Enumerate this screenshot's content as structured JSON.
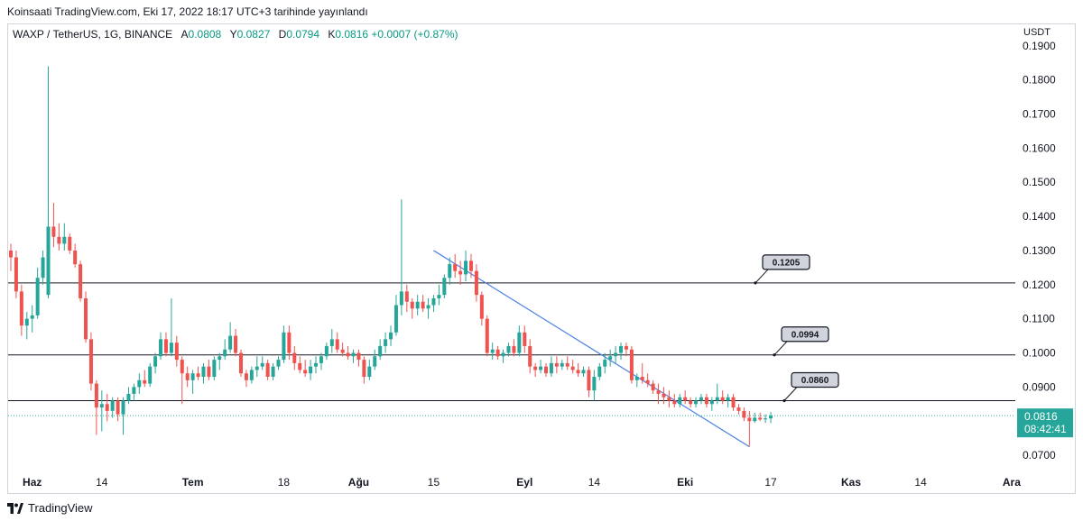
{
  "header": {
    "published_line": "Koinsaati TradingView.com, Eki 17, 2022 18:17 UTC+3 tarihinde yayınlandı"
  },
  "symbol_bar": {
    "symbol": "WAXP / TetherUS, 1G, BINANCE",
    "open_label": "A",
    "open_value": "0.0808",
    "high_label": "Y",
    "high_value": "0.0827",
    "low_label": "D",
    "low_value": "0.0794",
    "close_label": "K",
    "close_value": "0.0816",
    "change": "+0.0007 (+0.87%)"
  },
  "price_axis": {
    "unit": "USDT",
    "ticks": [
      "0.1900",
      "0.1800",
      "0.1700",
      "0.1600",
      "0.1500",
      "0.1400",
      "0.1300",
      "0.1200",
      "0.1100",
      "0.1000",
      "0.0900",
      "0.0700"
    ]
  },
  "time_axis": {
    "ticks": [
      "Haz",
      "14",
      "Tem",
      "18",
      "Ağu",
      "15",
      "Eyl",
      "14",
      "Eki",
      "17",
      "Kas",
      "14",
      "Ara"
    ]
  },
  "last_price": {
    "value": "0.0816",
    "countdown": "08:42:41"
  },
  "footer": {
    "brand": "TradingView"
  },
  "colors": {
    "up": "#26a69a",
    "down": "#ef5350",
    "trendline": "#4a7ee6",
    "level_line": "#131722",
    "last_price_tag": "#26a69a"
  },
  "chart_data": {
    "type": "candlestick",
    "symbol": "WAXP / TetherUS",
    "interval": "1G",
    "ylim": [
      0.065,
      0.1955
    ],
    "date_range": [
      "2022-05-28",
      "2022-10-17"
    ],
    "horizontal_levels": [
      {
        "value": 0.1205,
        "label": "0.1205"
      },
      {
        "value": 0.0994,
        "label": "0.0994"
      },
      {
        "value": 0.086,
        "label": "0.0860"
      }
    ],
    "trendline": {
      "from": {
        "date": "2022-08-15",
        "price": 0.13
      },
      "to": {
        "date": "2022-10-13",
        "price": 0.0725
      }
    },
    "last_price": 0.0816,
    "candles": [
      {
        "d": "2022-05-28",
        "o": 0.13,
        "h": 0.132,
        "l": 0.124,
        "c": 0.128
      },
      {
        "d": "2022-05-29",
        "o": 0.128,
        "h": 0.13,
        "l": 0.116,
        "c": 0.118
      },
      {
        "d": "2022-05-30",
        "o": 0.118,
        "h": 0.12,
        "l": 0.105,
        "c": 0.108
      },
      {
        "d": "2022-05-31",
        "o": 0.108,
        "h": 0.112,
        "l": 0.104,
        "c": 0.11
      },
      {
        "d": "2022-06-01",
        "o": 0.11,
        "h": 0.114,
        "l": 0.106,
        "c": 0.111
      },
      {
        "d": "2022-06-02",
        "o": 0.111,
        "h": 0.125,
        "l": 0.11,
        "c": 0.122
      },
      {
        "d": "2022-06-03",
        "o": 0.122,
        "h": 0.13,
        "l": 0.12,
        "c": 0.128
      },
      {
        "d": "2022-06-04",
        "o": 0.117,
        "h": 0.184,
        "l": 0.116,
        "c": 0.137
      },
      {
        "d": "2022-06-05",
        "o": 0.137,
        "h": 0.144,
        "l": 0.131,
        "c": 0.134
      },
      {
        "d": "2022-06-06",
        "o": 0.134,
        "h": 0.138,
        "l": 0.13,
        "c": 0.132
      },
      {
        "d": "2022-06-07",
        "o": 0.132,
        "h": 0.138,
        "l": 0.13,
        "c": 0.134
      },
      {
        "d": "2022-06-08",
        "o": 0.134,
        "h": 0.135,
        "l": 0.129,
        "c": 0.13
      },
      {
        "d": "2022-06-09",
        "o": 0.13,
        "h": 0.132,
        "l": 0.125,
        "c": 0.126
      },
      {
        "d": "2022-06-10",
        "o": 0.126,
        "h": 0.127,
        "l": 0.115,
        "c": 0.116
      },
      {
        "d": "2022-06-11",
        "o": 0.116,
        "h": 0.118,
        "l": 0.103,
        "c": 0.104
      },
      {
        "d": "2022-06-12",
        "o": 0.104,
        "h": 0.106,
        "l": 0.089,
        "c": 0.091
      },
      {
        "d": "2022-06-13",
        "o": 0.091,
        "h": 0.092,
        "l": 0.076,
        "c": 0.084
      },
      {
        "d": "2022-06-14",
        "o": 0.084,
        "h": 0.089,
        "l": 0.077,
        "c": 0.085
      },
      {
        "d": "2022-06-15",
        "o": 0.085,
        "h": 0.088,
        "l": 0.08,
        "c": 0.083
      },
      {
        "d": "2022-06-16",
        "o": 0.083,
        "h": 0.087,
        "l": 0.081,
        "c": 0.086
      },
      {
        "d": "2022-06-17",
        "o": 0.086,
        "h": 0.087,
        "l": 0.08,
        "c": 0.082
      },
      {
        "d": "2022-06-18",
        "o": 0.082,
        "h": 0.087,
        "l": 0.076,
        "c": 0.086
      },
      {
        "d": "2022-06-19",
        "o": 0.086,
        "h": 0.09,
        "l": 0.085,
        "c": 0.088
      },
      {
        "d": "2022-06-20",
        "o": 0.088,
        "h": 0.091,
        "l": 0.086,
        "c": 0.09
      },
      {
        "d": "2022-06-21",
        "o": 0.09,
        "h": 0.094,
        "l": 0.088,
        "c": 0.092
      },
      {
        "d": "2022-06-22",
        "o": 0.092,
        "h": 0.095,
        "l": 0.09,
        "c": 0.091
      },
      {
        "d": "2022-06-23",
        "o": 0.091,
        "h": 0.097,
        "l": 0.09,
        "c": 0.096
      },
      {
        "d": "2022-06-24",
        "o": 0.096,
        "h": 0.1,
        "l": 0.094,
        "c": 0.099
      },
      {
        "d": "2022-06-25",
        "o": 0.099,
        "h": 0.106,
        "l": 0.098,
        "c": 0.104
      },
      {
        "d": "2022-06-26",
        "o": 0.104,
        "h": 0.106,
        "l": 0.099,
        "c": 0.1
      },
      {
        "d": "2022-06-27",
        "o": 0.1,
        "h": 0.116,
        "l": 0.099,
        "c": 0.103
      },
      {
        "d": "2022-06-28",
        "o": 0.103,
        "h": 0.105,
        "l": 0.096,
        "c": 0.098
      },
      {
        "d": "2022-06-29",
        "o": 0.098,
        "h": 0.099,
        "l": 0.085,
        "c": 0.094
      },
      {
        "d": "2022-06-30",
        "o": 0.094,
        "h": 0.096,
        "l": 0.09,
        "c": 0.092
      },
      {
        "d": "2022-07-01",
        "o": 0.092,
        "h": 0.095,
        "l": 0.088,
        "c": 0.094
      },
      {
        "d": "2022-07-02",
        "o": 0.094,
        "h": 0.096,
        "l": 0.092,
        "c": 0.093
      },
      {
        "d": "2022-07-03",
        "o": 0.093,
        "h": 0.097,
        "l": 0.091,
        "c": 0.096
      },
      {
        "d": "2022-07-04",
        "o": 0.096,
        "h": 0.098,
        "l": 0.092,
        "c": 0.093
      },
      {
        "d": "2022-07-05",
        "o": 0.093,
        "h": 0.099,
        "l": 0.092,
        "c": 0.098
      },
      {
        "d": "2022-07-06",
        "o": 0.098,
        "h": 0.1,
        "l": 0.095,
        "c": 0.099
      },
      {
        "d": "2022-07-07",
        "o": 0.099,
        "h": 0.104,
        "l": 0.098,
        "c": 0.101
      },
      {
        "d": "2022-07-08",
        "o": 0.101,
        "h": 0.109,
        "l": 0.1,
        "c": 0.105
      },
      {
        "d": "2022-07-09",
        "o": 0.105,
        "h": 0.107,
        "l": 0.099,
        "c": 0.1
      },
      {
        "d": "2022-07-10",
        "o": 0.1,
        "h": 0.101,
        "l": 0.093,
        "c": 0.094
      },
      {
        "d": "2022-07-11",
        "o": 0.094,
        "h": 0.095,
        "l": 0.09,
        "c": 0.092
      },
      {
        "d": "2022-07-12",
        "o": 0.092,
        "h": 0.096,
        "l": 0.091,
        "c": 0.095
      },
      {
        "d": "2022-07-13",
        "o": 0.095,
        "h": 0.099,
        "l": 0.093,
        "c": 0.096
      },
      {
        "d": "2022-07-14",
        "o": 0.096,
        "h": 0.099,
        "l": 0.095,
        "c": 0.097
      },
      {
        "d": "2022-07-15",
        "o": 0.097,
        "h": 0.098,
        "l": 0.092,
        "c": 0.093
      },
      {
        "d": "2022-07-16",
        "o": 0.093,
        "h": 0.097,
        "l": 0.092,
        "c": 0.096
      },
      {
        "d": "2022-07-17",
        "o": 0.096,
        "h": 0.099,
        "l": 0.095,
        "c": 0.098
      },
      {
        "d": "2022-07-18",
        "o": 0.098,
        "h": 0.108,
        "l": 0.097,
        "c": 0.106
      },
      {
        "d": "2022-07-19",
        "o": 0.106,
        "h": 0.108,
        "l": 0.098,
        "c": 0.1
      },
      {
        "d": "2022-07-20",
        "o": 0.1,
        "h": 0.102,
        "l": 0.095,
        "c": 0.097
      },
      {
        "d": "2022-07-21",
        "o": 0.097,
        "h": 0.099,
        "l": 0.094,
        "c": 0.095
      },
      {
        "d": "2022-07-22",
        "o": 0.095,
        "h": 0.098,
        "l": 0.093,
        "c": 0.094
      },
      {
        "d": "2022-07-23",
        "o": 0.094,
        "h": 0.098,
        "l": 0.092,
        "c": 0.096
      },
      {
        "d": "2022-07-24",
        "o": 0.096,
        "h": 0.099,
        "l": 0.094,
        "c": 0.097
      },
      {
        "d": "2022-07-25",
        "o": 0.097,
        "h": 0.1,
        "l": 0.095,
        "c": 0.099
      },
      {
        "d": "2022-07-26",
        "o": 0.099,
        "h": 0.103,
        "l": 0.098,
        "c": 0.102
      },
      {
        "d": "2022-07-27",
        "o": 0.102,
        "h": 0.107,
        "l": 0.1,
        "c": 0.104
      },
      {
        "d": "2022-07-28",
        "o": 0.104,
        "h": 0.106,
        "l": 0.1,
        "c": 0.101
      },
      {
        "d": "2022-07-29",
        "o": 0.101,
        "h": 0.103,
        "l": 0.099,
        "c": 0.1
      },
      {
        "d": "2022-07-30",
        "o": 0.1,
        "h": 0.102,
        "l": 0.098,
        "c": 0.099
      },
      {
        "d": "2022-07-31",
        "o": 0.099,
        "h": 0.101,
        "l": 0.097,
        "c": 0.1
      },
      {
        "d": "2022-08-01",
        "o": 0.1,
        "h": 0.101,
        "l": 0.096,
        "c": 0.098
      },
      {
        "d": "2022-08-02",
        "o": 0.098,
        "h": 0.099,
        "l": 0.091,
        "c": 0.093
      },
      {
        "d": "2022-08-03",
        "o": 0.093,
        "h": 0.098,
        "l": 0.092,
        "c": 0.096
      },
      {
        "d": "2022-08-04",
        "o": 0.096,
        "h": 0.101,
        "l": 0.095,
        "c": 0.099
      },
      {
        "d": "2022-08-05",
        "o": 0.099,
        "h": 0.104,
        "l": 0.098,
        "c": 0.102
      },
      {
        "d": "2022-08-06",
        "o": 0.102,
        "h": 0.106,
        "l": 0.1,
        "c": 0.104
      },
      {
        "d": "2022-08-07",
        "o": 0.104,
        "h": 0.108,
        "l": 0.102,
        "c": 0.106
      },
      {
        "d": "2022-08-08",
        "o": 0.106,
        "h": 0.117,
        "l": 0.105,
        "c": 0.114
      },
      {
        "d": "2022-08-09",
        "o": 0.114,
        "h": 0.145,
        "l": 0.111,
        "c": 0.118
      },
      {
        "d": "2022-08-10",
        "o": 0.118,
        "h": 0.12,
        "l": 0.112,
        "c": 0.115
      },
      {
        "d": "2022-08-11",
        "o": 0.115,
        "h": 0.116,
        "l": 0.11,
        "c": 0.113
      },
      {
        "d": "2022-08-12",
        "o": 0.113,
        "h": 0.117,
        "l": 0.111,
        "c": 0.115
      },
      {
        "d": "2022-08-13",
        "o": 0.115,
        "h": 0.117,
        "l": 0.112,
        "c": 0.113
      },
      {
        "d": "2022-08-14",
        "o": 0.113,
        "h": 0.116,
        "l": 0.11,
        "c": 0.114
      },
      {
        "d": "2022-08-15",
        "o": 0.114,
        "h": 0.117,
        "l": 0.112,
        "c": 0.116
      },
      {
        "d": "2022-08-16",
        "o": 0.116,
        "h": 0.12,
        "l": 0.114,
        "c": 0.117
      },
      {
        "d": "2022-08-17",
        "o": 0.117,
        "h": 0.123,
        "l": 0.116,
        "c": 0.122
      },
      {
        "d": "2022-08-18",
        "o": 0.122,
        "h": 0.128,
        "l": 0.12,
        "c": 0.126
      },
      {
        "d": "2022-08-19",
        "o": 0.126,
        "h": 0.129,
        "l": 0.122,
        "c": 0.124
      },
      {
        "d": "2022-08-20",
        "o": 0.124,
        "h": 0.127,
        "l": 0.12,
        "c": 0.123
      },
      {
        "d": "2022-08-21",
        "o": 0.123,
        "h": 0.13,
        "l": 0.121,
        "c": 0.127
      },
      {
        "d": "2022-08-22",
        "o": 0.127,
        "h": 0.129,
        "l": 0.122,
        "c": 0.124
      },
      {
        "d": "2022-08-23",
        "o": 0.124,
        "h": 0.126,
        "l": 0.115,
        "c": 0.117
      },
      {
        "d": "2022-08-24",
        "o": 0.117,
        "h": 0.118,
        "l": 0.108,
        "c": 0.11
      },
      {
        "d": "2022-08-25",
        "o": 0.11,
        "h": 0.111,
        "l": 0.099,
        "c": 0.1
      },
      {
        "d": "2022-08-26",
        "o": 0.1,
        "h": 0.103,
        "l": 0.098,
        "c": 0.101
      },
      {
        "d": "2022-08-27",
        "o": 0.101,
        "h": 0.102,
        "l": 0.098,
        "c": 0.099
      },
      {
        "d": "2022-08-28",
        "o": 0.099,
        "h": 0.101,
        "l": 0.097,
        "c": 0.1
      },
      {
        "d": "2022-08-29",
        "o": 0.1,
        "h": 0.103,
        "l": 0.099,
        "c": 0.102
      },
      {
        "d": "2022-08-30",
        "o": 0.102,
        "h": 0.104,
        "l": 0.099,
        "c": 0.1
      },
      {
        "d": "2022-08-31",
        "o": 0.1,
        "h": 0.108,
        "l": 0.099,
        "c": 0.106
      },
      {
        "d": "2022-09-01",
        "o": 0.106,
        "h": 0.108,
        "l": 0.1,
        "c": 0.102
      },
      {
        "d": "2022-09-02",
        "o": 0.102,
        "h": 0.104,
        "l": 0.094,
        "c": 0.096
      },
      {
        "d": "2022-09-03",
        "o": 0.096,
        "h": 0.097,
        "l": 0.093,
        "c": 0.095
      },
      {
        "d": "2022-09-04",
        "o": 0.095,
        "h": 0.098,
        "l": 0.094,
        "c": 0.096
      },
      {
        "d": "2022-09-05",
        "o": 0.096,
        "h": 0.097,
        "l": 0.093,
        "c": 0.094
      },
      {
        "d": "2022-09-06",
        "o": 0.094,
        "h": 0.099,
        "l": 0.093,
        "c": 0.097
      },
      {
        "d": "2022-09-07",
        "o": 0.097,
        "h": 0.099,
        "l": 0.094,
        "c": 0.096
      },
      {
        "d": "2022-09-08",
        "o": 0.096,
        "h": 0.098,
        "l": 0.095,
        "c": 0.097
      },
      {
        "d": "2022-09-09",
        "o": 0.097,
        "h": 0.099,
        "l": 0.095,
        "c": 0.096
      },
      {
        "d": "2022-09-10",
        "o": 0.096,
        "h": 0.098,
        "l": 0.094,
        "c": 0.095
      },
      {
        "d": "2022-09-11",
        "o": 0.095,
        "h": 0.097,
        "l": 0.093,
        "c": 0.094
      },
      {
        "d": "2022-09-12",
        "o": 0.094,
        "h": 0.096,
        "l": 0.093,
        "c": 0.095
      },
      {
        "d": "2022-09-13",
        "o": 0.095,
        "h": 0.096,
        "l": 0.087,
        "c": 0.089
      },
      {
        "d": "2022-09-14",
        "o": 0.089,
        "h": 0.095,
        "l": 0.086,
        "c": 0.093
      },
      {
        "d": "2022-09-15",
        "o": 0.093,
        "h": 0.097,
        "l": 0.092,
        "c": 0.096
      },
      {
        "d": "2022-09-16",
        "o": 0.096,
        "h": 0.1,
        "l": 0.094,
        "c": 0.098
      },
      {
        "d": "2022-09-17",
        "o": 0.098,
        "h": 0.101,
        "l": 0.096,
        "c": 0.099
      },
      {
        "d": "2022-09-18",
        "o": 0.099,
        "h": 0.102,
        "l": 0.097,
        "c": 0.1
      },
      {
        "d": "2022-09-19",
        "o": 0.1,
        "h": 0.103,
        "l": 0.098,
        "c": 0.102
      },
      {
        "d": "2022-09-20",
        "o": 0.102,
        "h": 0.103,
        "l": 0.099,
        "c": 0.101
      },
      {
        "d": "2022-09-21",
        "o": 0.101,
        "h": 0.102,
        "l": 0.091,
        "c": 0.092
      },
      {
        "d": "2022-09-22",
        "o": 0.092,
        "h": 0.094,
        "l": 0.09,
        "c": 0.093
      },
      {
        "d": "2022-09-23",
        "o": 0.093,
        "h": 0.097,
        "l": 0.091,
        "c": 0.092
      },
      {
        "d": "2022-09-24",
        "o": 0.092,
        "h": 0.094,
        "l": 0.09,
        "c": 0.091
      },
      {
        "d": "2022-09-25",
        "o": 0.091,
        "h": 0.092,
        "l": 0.088,
        "c": 0.089
      },
      {
        "d": "2022-09-26",
        "o": 0.089,
        "h": 0.091,
        "l": 0.085,
        "c": 0.088
      },
      {
        "d": "2022-09-27",
        "o": 0.088,
        "h": 0.09,
        "l": 0.085,
        "c": 0.087
      },
      {
        "d": "2022-09-28",
        "o": 0.087,
        "h": 0.089,
        "l": 0.084,
        "c": 0.086
      },
      {
        "d": "2022-09-29",
        "o": 0.086,
        "h": 0.088,
        "l": 0.084,
        "c": 0.085
      },
      {
        "d": "2022-09-30",
        "o": 0.085,
        "h": 0.088,
        "l": 0.084,
        "c": 0.087
      },
      {
        "d": "2022-10-01",
        "o": 0.087,
        "h": 0.089,
        "l": 0.085,
        "c": 0.086
      },
      {
        "d": "2022-10-02",
        "o": 0.086,
        "h": 0.087,
        "l": 0.084,
        "c": 0.085
      },
      {
        "d": "2022-10-03",
        "o": 0.085,
        "h": 0.087,
        "l": 0.084,
        "c": 0.086
      },
      {
        "d": "2022-10-04",
        "o": 0.086,
        "h": 0.088,
        "l": 0.085,
        "c": 0.087
      },
      {
        "d": "2022-10-05",
        "o": 0.087,
        "h": 0.088,
        "l": 0.084,
        "c": 0.085
      },
      {
        "d": "2022-10-06",
        "o": 0.085,
        "h": 0.087,
        "l": 0.083,
        "c": 0.086
      },
      {
        "d": "2022-10-07",
        "o": 0.086,
        "h": 0.091,
        "l": 0.085,
        "c": 0.087
      },
      {
        "d": "2022-10-08",
        "o": 0.087,
        "h": 0.089,
        "l": 0.085,
        "c": 0.086
      },
      {
        "d": "2022-10-09",
        "o": 0.086,
        "h": 0.088,
        "l": 0.084,
        "c": 0.087
      },
      {
        "d": "2022-10-10",
        "o": 0.087,
        "h": 0.088,
        "l": 0.083,
        "c": 0.084
      },
      {
        "d": "2022-10-11",
        "o": 0.084,
        "h": 0.085,
        "l": 0.082,
        "c": 0.083
      },
      {
        "d": "2022-10-12",
        "o": 0.083,
        "h": 0.084,
        "l": 0.08,
        "c": 0.081
      },
      {
        "d": "2022-10-13",
        "o": 0.081,
        "h": 0.083,
        "l": 0.0725,
        "c": 0.08
      },
      {
        "d": "2022-10-14",
        "o": 0.08,
        "h": 0.0825,
        "l": 0.0795,
        "c": 0.081
      },
      {
        "d": "2022-10-15",
        "o": 0.081,
        "h": 0.0825,
        "l": 0.08,
        "c": 0.0805
      },
      {
        "d": "2022-10-16",
        "o": 0.0805,
        "h": 0.082,
        "l": 0.0795,
        "c": 0.0808
      },
      {
        "d": "2022-10-17",
        "o": 0.0808,
        "h": 0.0827,
        "l": 0.0794,
        "c": 0.0816
      }
    ]
  }
}
